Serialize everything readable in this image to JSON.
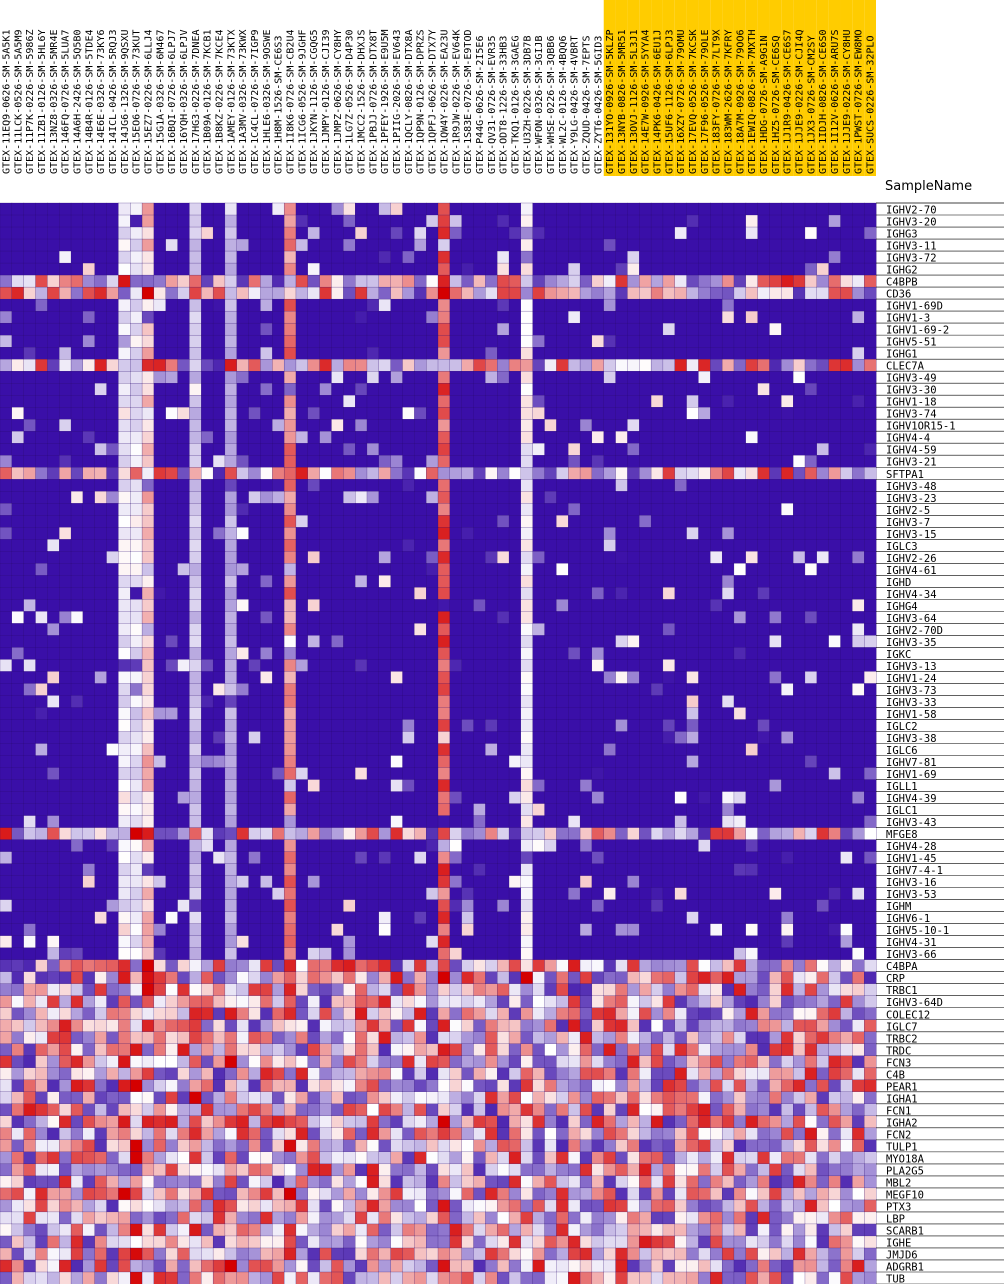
{
  "chart_data": {
    "type": "heatmap",
    "axis_title": "SampleName",
    "highlight_color": "#ffcc00",
    "colors": {
      "low": "#3a0fa8",
      "mid": "#ffffff",
      "high": "#d40000"
    },
    "group_split_index": 51,
    "samples": [
      "GTEX-11EQ9-0626-SM-5A5K1",
      "GTEX-11LCK-0526-SM-5A5M9",
      "GTEX-11P7K-0226-SM-5986Z",
      "GTEX-11ZB1-0126-SM-5HL6Y",
      "GTEX-13NZ8-0326-SM-5MR4E",
      "GTEX-146FQ-0726-SM-5LUA7",
      "GTEX-14A6H-2426-SM-5Q5B0",
      "GTEX-14B4R-0126-SM-5TDE4",
      "GTEX-14E6E-0326-SM-73KY6",
      "GTEX-14ICL-0426-SM-5RQJ3",
      "GTEX-14JG6-1326-SM-9QSXU",
      "GTEX-15EO6-0726-SM-73KUT",
      "GTEX-15EZ7-0226-SM-6LLJ4",
      "GTEX-15G1A-0326-SM-6M467",
      "GTEX-16BQI-0726-SM-6LPJ7",
      "GTEX-16YQH-0326-SM-6LPJV",
      "GTEX-17HG3-0226-SM-7DNEA",
      "GTEX-1B09A-0126-SM-7KCB1",
      "GTEX-1B8KZ-0226-SM-7KCE4",
      "GTEX-1AMEY-0126-SM-73KTX",
      "GTEX-1A3MV-0326-SM-73KWX",
      "GTEX-1C4CL-0726-SM-7IGP9",
      "GTEX-1HLE6-0326-SM-9OSWE",
      "GTEX-1H8M-1526-SM-CE6S3",
      "GTEX-1I8K6-0726-SM-CB2U4",
      "GTEX-1ICG6-0526-SM-9JGHF",
      "GTEX-1JKYN-1126-SM-CGQG5",
      "GTEX-1JMPY-0126-SM-CJI39",
      "GTEX-1JMPZ-0626-SM-CY8HY",
      "GTEX-1LG7Z-0526-SM-D4P30",
      "GTEX-1MCC2-1526-SM-DHXJS",
      "GTEX-1PBJJ-0726-SM-DTX8T",
      "GTEX-1PFEY-1926-SM-E9U5M",
      "GTEX-1PIIG-2026-SM-EV643",
      "GTEX-1QCLY-0826-SM-DTX8A",
      "GTEX-1QP9N-0126-SM-DPRZS",
      "GTEX-1QPFJ-0626-SM-DTX7Y",
      "GTEX-1QW4Y-0226-SM-EA23U",
      "GTEX-1R9JW-0226-SM-EV64K",
      "GTEX-1S83E-0726-SM-E9TOD",
      "GTEX-P44G-0626-SM-2I5E6",
      "GTEX-QV31-0726-SM-EVR35",
      "GTEX-ODT8-1226-SM-33HB3",
      "GTEX-TKQ1-0126-SM-3GAEG",
      "GTEX-U3ZH-0226-SM-3DB7B",
      "GTEX-WFON-0326-SM-3GIJB",
      "GTEX-WHSE-0226-SM-3QBB6",
      "GTEX-WL2C-0126-SM-4BQQ6",
      "GTEX-Y9LG-0426-SM-4VBRT",
      "GTEX-ZQUD-0426-SM-7EPTS",
      "GTEX-ZYT6-0426-SM-5GID3",
      "GTEX-131YO-0926-SM-5KLZP",
      "GTEX-13NYB-0826-SM-5MR51",
      "GTEX-13OVJ-1126-SM-5L3J1",
      "GTEX-14E7W-0926-SM-5YYA4",
      "GTEX-14PK6-0426-SM-6EU1J",
      "GTEX-15UF6-1126-SM-6LPJ3",
      "GTEX-16XZY-0726-SM-79OMU",
      "GTEX-17EVQ-0526-SM-7KCSK",
      "GTEX-17F96-0526-SM-79OLE",
      "GTEX-183FY-0726-SM-7LT9X",
      "GTEX-183WM-2626-SM-7KFRY",
      "GTEX-18A7M-0926-SM-79OO6",
      "GTEX-1EWIQ-0826-SM-7MXTH",
      "GTEX-1HDG-0726-SM-A9G1N",
      "GTEX-1HZ5-0726-SM-CE6SQ",
      "GTEX-1J1R9-0426-SM-CE6S7",
      "GTEX-1JJE9-0226-SM-CJI4Q",
      "GTEX-1JX3-0726-SM-CM2SY",
      "GTEX-1IDJH-0826-SM-CE6S0",
      "GTEX-1I12V-0626-SM-ARU7S",
      "GTEX-1JJE9-0226-SM-CY8HU",
      "GTEX-1PWST-0726-SM-EW8MO",
      "GTEX-SUCS-0226-SM-32PLO"
    ],
    "genes": [
      "IGHV2-70",
      "IGHV3-20",
      "IGHG3",
      "IGHV3-11",
      "IGHV3-72",
      "IGHG2",
      "C4BPB",
      "CD36",
      "IGHV1-69D",
      "IGHV1-3",
      "IGHV1-69-2",
      "IGHV5-51",
      "IGHG1",
      "CLEC7A",
      "IGHV3-49",
      "IGHV3-30",
      "IGHV1-18",
      "IGHV3-74",
      "IGHV1OR15-1",
      "IGHV4-4",
      "IGHV4-59",
      "IGHV3-21",
      "SFTPA1",
      "IGHV3-48",
      "IGHV3-23",
      "IGHV2-5",
      "IGHV3-7",
      "IGHV3-15",
      "IGLC3",
      "IGHV2-26",
      "IGHV4-61",
      "IGHD",
      "IGHV4-34",
      "IGHG4",
      "IGHV3-64",
      "IGHV2-70D",
      "IGHV3-35",
      "IGKC",
      "IGHV3-13",
      "IGHV1-24",
      "IGHV3-73",
      "IGHV3-33",
      "IGHV1-58",
      "IGLC2",
      "IGHV3-38",
      "IGLC6",
      "IGHV7-81",
      "IGHV1-69",
      "IGLL1",
      "IGHV4-39",
      "IGLC1",
      "IGHV3-43",
      "MFGE8",
      "IGHV4-28",
      "IGHV1-45",
      "IGHV7-4-1",
      "IGHV3-16",
      "IGHV3-53",
      "IGHM",
      "IGHV6-1",
      "IGHV5-10-1",
      "IGHV4-31",
      "IGHV3-66",
      "C4BPA",
      "CRP",
      "TRBC1",
      "IGHV3-64D",
      "COLEC12",
      "IGLC7",
      "TRBC2",
      "TRDC",
      "FCN3",
      "C4B",
      "PEAR1",
      "IGHA1",
      "FCN1",
      "IGHA2",
      "FCN2",
      "TULP1",
      "MYO18A",
      "PLA2G5",
      "MBL2",
      "MEGF10",
      "PTX3",
      "LBP",
      "SCARB1",
      "IGHE",
      "JMJD6",
      "ADGRB1",
      "TUB"
    ]
  }
}
